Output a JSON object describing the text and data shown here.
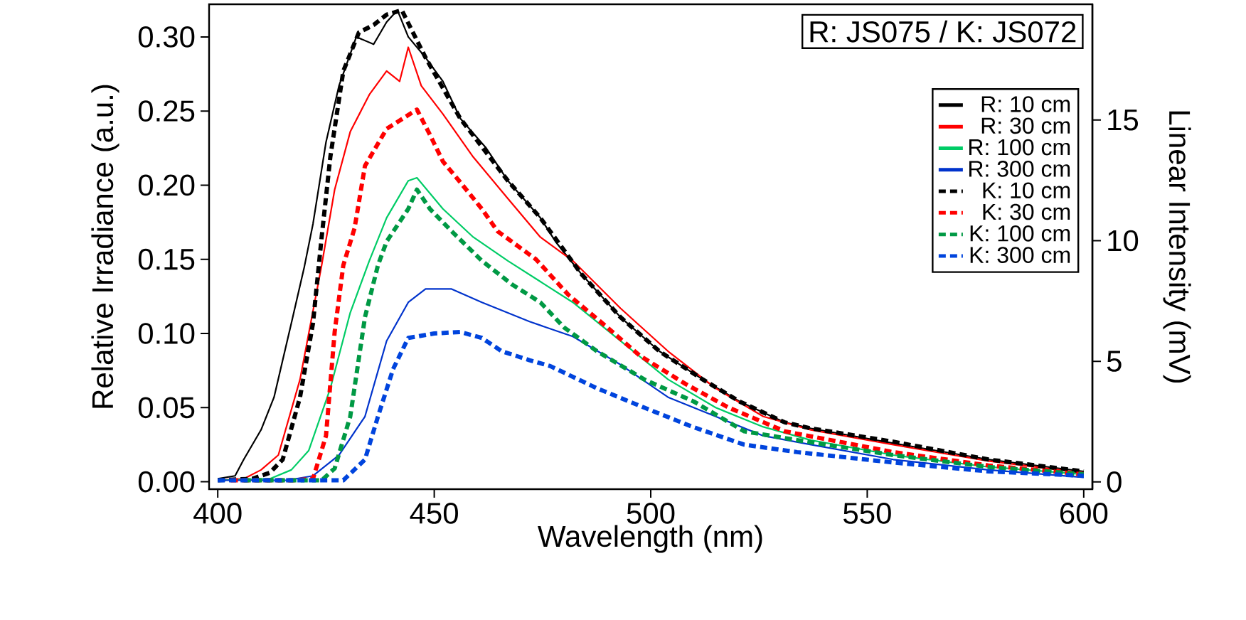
{
  "chart_data": {
    "type": "line",
    "xlabel": "Wavelength (nm)",
    "ylabel": "Relative Irradiance (a.u.)",
    "y2label": "Linear Intensity (mV)",
    "legend_title": "R: JS075 / K: JS072",
    "legend": "top right",
    "grid": false,
    "xlim": [
      398,
      602
    ],
    "ylim": [
      -0.005,
      0.322
    ],
    "y2lim": [
      -0.3,
      19.8
    ],
    "xticks": [
      400,
      450,
      500,
      550,
      600
    ],
    "yticks": [
      {
        "value": 0,
        "label": "0.00"
      },
      {
        "value": 0.05,
        "label": "0.05"
      },
      {
        "value": 0.1,
        "label": "0.10"
      },
      {
        "value": 0.15,
        "label": "0.15"
      },
      {
        "value": 0.2,
        "label": "0.20"
      },
      {
        "value": 0.25,
        "label": "0.25"
      },
      {
        "value": 0.3,
        "label": "0.30"
      }
    ],
    "y2ticks": [
      0,
      5,
      10,
      15
    ],
    "series": [
      {
        "name": "R: 10 cm",
        "color": "#000000",
        "line_style": "solid",
        "x": [
          400,
          404,
          406,
          410,
          413,
          417,
          420,
          422,
          425,
          428,
          432,
          436,
          439,
          441.5,
          444,
          448,
          452,
          456,
          462,
          467,
          474.5,
          478,
          484,
          493,
          502,
          512,
          520.6,
          531,
          537,
          556,
          578,
          600
        ],
        "values": [
          0.002,
          0.004,
          0.015,
          0.035,
          0.057,
          0.107,
          0.145,
          0.174,
          0.229,
          0.267,
          0.3,
          0.295,
          0.31,
          0.318,
          0.3,
          0.286,
          0.27,
          0.245,
          0.225,
          0.203,
          0.178,
          0.162,
          0.14,
          0.111,
          0.088,
          0.069,
          0.054,
          0.04,
          0.036,
          0.026,
          0.015,
          0.007
        ]
      },
      {
        "name": "R: 30 cm",
        "color": "#ff0000",
        "line_style": "solid",
        "x": [
          400,
          406,
          410,
          414,
          419,
          424,
          427,
          430.6,
          435,
          439,
          442,
          444,
          447,
          452,
          459,
          467,
          474.5,
          482,
          493,
          504,
          515,
          526,
          537,
          556,
          578,
          600
        ],
        "values": [
          0.001,
          0.002,
          0.008,
          0.018,
          0.069,
          0.146,
          0.197,
          0.236,
          0.261,
          0.277,
          0.27,
          0.293,
          0.267,
          0.248,
          0.219,
          0.191,
          0.165,
          0.149,
          0.117,
          0.088,
          0.063,
          0.044,
          0.035,
          0.025,
          0.014,
          0.006
        ]
      },
      {
        "name": "R: 100 cm",
        "color": "#00cc66",
        "line_style": "solid",
        "x": [
          400,
          412,
          417,
          421,
          426,
          430.6,
          435,
          439,
          444,
          446,
          452,
          459,
          467,
          474.5,
          482,
          493,
          504,
          515,
          526,
          537,
          556,
          578,
          600
        ],
        "values": [
          0.001,
          0.002,
          0.008,
          0.021,
          0.063,
          0.114,
          0.149,
          0.178,
          0.203,
          0.205,
          0.184,
          0.165,
          0.149,
          0.135,
          0.121,
          0.095,
          0.069,
          0.05,
          0.037,
          0.028,
          0.018,
          0.01,
          0.005
        ]
      },
      {
        "name": "R: 300 cm",
        "color": "#0033cc",
        "line_style": "solid",
        "x": [
          400,
          416,
          422,
          428,
          434,
          439,
          444,
          448,
          454,
          461,
          472,
          482,
          493,
          504,
          515,
          526,
          537,
          556,
          578,
          600
        ],
        "values": [
          0.001,
          0.001,
          0.004,
          0.018,
          0.044,
          0.095,
          0.121,
          0.13,
          0.13,
          0.121,
          0.108,
          0.098,
          0.079,
          0.057,
          0.044,
          0.031,
          0.025,
          0.015,
          0.008,
          0.003
        ]
      },
      {
        "name": "K: 10 cm",
        "color": "#000000",
        "line_style": "dashed",
        "x": [
          400,
          408,
          412,
          415,
          419,
          422,
          424,
          426,
          429,
          432.6,
          436,
          439,
          442.5,
          448,
          456,
          467,
          474.5,
          484,
          493,
          502,
          512,
          520.6,
          531,
          537,
          556,
          578,
          600
        ],
        "values": [
          0.001,
          0.002,
          0.006,
          0.015,
          0.057,
          0.107,
          0.165,
          0.219,
          0.277,
          0.303,
          0.308,
          0.315,
          0.318,
          0.286,
          0.245,
          0.203,
          0.178,
          0.14,
          0.111,
          0.088,
          0.069,
          0.054,
          0.04,
          0.036,
          0.027,
          0.015,
          0.007
        ]
      },
      {
        "name": "K: 30 cm",
        "color": "#ff0000",
        "line_style": "dashed",
        "x": [
          403,
          418,
          422,
          425,
          427,
          429,
          431.6,
          434,
          439,
          446,
          449,
          452,
          456,
          461,
          464.6,
          473.5,
          481,
          490,
          497.5,
          508,
          518,
          531,
          556,
          578,
          600
        ],
        "values": [
          0.001,
          0.001,
          0.002,
          0.031,
          0.101,
          0.146,
          0.171,
          0.213,
          0.238,
          0.251,
          0.234,
          0.216,
          0.202,
          0.184,
          0.169,
          0.15,
          0.126,
          0.104,
          0.085,
          0.066,
          0.05,
          0.034,
          0.02,
          0.011,
          0.005
        ]
      },
      {
        "name": "K: 100 cm",
        "color": "#009944",
        "line_style": "dashed",
        "x": [
          406,
          424,
          427,
          430.6,
          434,
          437,
          439,
          444,
          446,
          449,
          454,
          461,
          468,
          474.5,
          480,
          487.6,
          498.5,
          510,
          521.6,
          534,
          556,
          578,
          600
        ],
        "values": [
          0.001,
          0.001,
          0.009,
          0.044,
          0.111,
          0.146,
          0.162,
          0.184,
          0.197,
          0.184,
          0.169,
          0.149,
          0.133,
          0.121,
          0.104,
          0.088,
          0.069,
          0.054,
          0.034,
          0.028,
          0.018,
          0.01,
          0.005
        ]
      },
      {
        "name": "K: 300 cm",
        "color": "#0044dd",
        "line_style": "dashed",
        "x": [
          400,
          429,
          434,
          437,
          440.5,
          444,
          450,
          456,
          461,
          465.6,
          472,
          476.8,
          487.6,
          498.5,
          509.7,
          521.6,
          533.8,
          556,
          578,
          600
        ],
        "values": [
          0.001,
          0.001,
          0.015,
          0.044,
          0.076,
          0.097,
          0.1,
          0.101,
          0.097,
          0.088,
          0.082,
          0.078,
          0.063,
          0.05,
          0.037,
          0.025,
          0.02,
          0.013,
          0.007,
          0.004
        ]
      }
    ]
  }
}
